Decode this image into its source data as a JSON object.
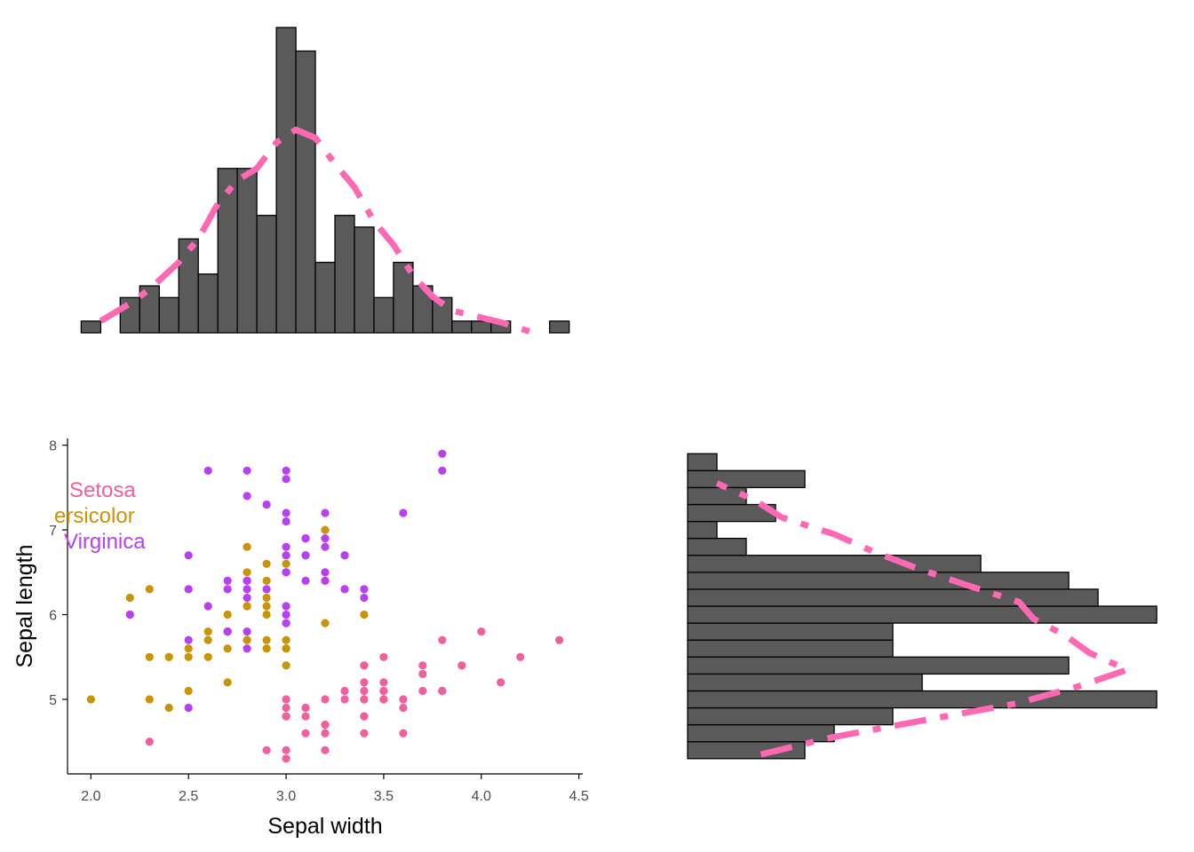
{
  "colors": {
    "setosa": "#F0609E",
    "versicolor": "#C9940A",
    "virginica": "#B940F2",
    "bar_fill": "#5A5A5A",
    "bar_stroke": "#000000",
    "density_line": "#FF69B4",
    "axis": "#000000",
    "tick_text": "#4d4d4d"
  },
  "chart_data": [
    {
      "type": "scatter",
      "panel": "main",
      "title": "",
      "xlabel": "Sepal width",
      "ylabel": "Sepal length",
      "xlim": [
        1.88,
        4.52
      ],
      "ylim": [
        4.12,
        8.08
      ],
      "xticks": [
        2.0,
        2.5,
        3.0,
        3.5,
        4.0,
        4.5
      ],
      "xtick_labels": [
        "2.0",
        "2.5",
        "3.0",
        "3.5",
        "4.0",
        "4.5"
      ],
      "yticks": [
        5,
        6,
        7,
        8
      ],
      "ytick_labels": [
        "5",
        "6",
        "7",
        "8"
      ],
      "legend": {
        "placement": "top-left",
        "entries": [
          "Setosa",
          "ersicolor",
          "Virginica"
        ]
      },
      "series": [
        {
          "name": "Setosa",
          "points": [
            [
              3.5,
              5.1
            ],
            [
              3.0,
              4.9
            ],
            [
              3.2,
              4.7
            ],
            [
              3.1,
              4.6
            ],
            [
              3.6,
              5.0
            ],
            [
              3.9,
              5.4
            ],
            [
              3.4,
              4.6
            ],
            [
              3.4,
              5.0
            ],
            [
              2.9,
              4.4
            ],
            [
              3.1,
              4.9
            ],
            [
              3.7,
              5.4
            ],
            [
              3.4,
              4.8
            ],
            [
              3.0,
              4.8
            ],
            [
              3.0,
              4.3
            ],
            [
              4.0,
              5.8
            ],
            [
              4.4,
              5.7
            ],
            [
              3.9,
              5.4
            ],
            [
              3.5,
              5.1
            ],
            [
              3.8,
              5.7
            ],
            [
              3.8,
              5.1
            ],
            [
              3.4,
              5.4
            ],
            [
              3.7,
              5.1
            ],
            [
              3.6,
              4.6
            ],
            [
              3.3,
              5.1
            ],
            [
              3.4,
              4.8
            ],
            [
              3.0,
              5.0
            ],
            [
              3.4,
              5.0
            ],
            [
              3.5,
              5.2
            ],
            [
              3.4,
              5.2
            ],
            [
              3.2,
              4.7
            ],
            [
              3.1,
              4.8
            ],
            [
              3.4,
              5.4
            ],
            [
              4.1,
              5.2
            ],
            [
              4.2,
              5.5
            ],
            [
              3.1,
              4.9
            ],
            [
              3.2,
              5.0
            ],
            [
              3.5,
              5.5
            ],
            [
              3.6,
              4.9
            ],
            [
              3.0,
              4.4
            ],
            [
              3.4,
              5.1
            ],
            [
              3.5,
              5.0
            ],
            [
              2.3,
              4.5
            ],
            [
              3.2,
              4.4
            ],
            [
              3.5,
              5.0
            ],
            [
              3.8,
              5.1
            ],
            [
              3.0,
              4.8
            ],
            [
              3.8,
              5.1
            ],
            [
              3.2,
              4.6
            ],
            [
              3.7,
              5.3
            ],
            [
              3.3,
              5.0
            ]
          ]
        },
        {
          "name": "ersicolor",
          "points": [
            [
              3.2,
              7.0
            ],
            [
              3.2,
              6.4
            ],
            [
              3.1,
              6.9
            ],
            [
              2.3,
              5.5
            ],
            [
              2.8,
              6.5
            ],
            [
              2.8,
              5.7
            ],
            [
              3.3,
              6.3
            ],
            [
              2.4,
              4.9
            ],
            [
              2.9,
              6.6
            ],
            [
              2.7,
              5.2
            ],
            [
              2.0,
              5.0
            ],
            [
              3.0,
              5.9
            ],
            [
              2.2,
              6.0
            ],
            [
              2.9,
              6.1
            ],
            [
              2.9,
              5.6
            ],
            [
              3.1,
              6.7
            ],
            [
              3.0,
              5.6
            ],
            [
              2.7,
              5.8
            ],
            [
              2.2,
              6.2
            ],
            [
              2.5,
              5.6
            ],
            [
              3.2,
              5.9
            ],
            [
              2.8,
              6.1
            ],
            [
              2.5,
              6.3
            ],
            [
              2.8,
              6.1
            ],
            [
              2.9,
              6.4
            ],
            [
              3.0,
              6.6
            ],
            [
              2.8,
              6.8
            ],
            [
              3.0,
              6.7
            ],
            [
              2.9,
              6.0
            ],
            [
              2.6,
              5.7
            ],
            [
              2.4,
              5.5
            ],
            [
              2.4,
              5.5
            ],
            [
              2.7,
              5.8
            ],
            [
              2.7,
              6.0
            ],
            [
              3.0,
              5.4
            ],
            [
              3.4,
              6.0
            ],
            [
              3.1,
              6.7
            ],
            [
              2.3,
              6.3
            ],
            [
              3.0,
              5.6
            ],
            [
              2.5,
              5.5
            ],
            [
              2.6,
              5.5
            ],
            [
              3.0,
              6.1
            ],
            [
              2.6,
              5.8
            ],
            [
              2.3,
              5.0
            ],
            [
              2.7,
              5.6
            ],
            [
              3.0,
              5.7
            ],
            [
              2.9,
              5.7
            ],
            [
              2.9,
              6.2
            ],
            [
              2.5,
              5.1
            ],
            [
              2.8,
              5.7
            ]
          ]
        },
        {
          "name": "Virginica",
          "points": [
            [
              3.3,
              6.3
            ],
            [
              2.7,
              5.8
            ],
            [
              3.0,
              7.1
            ],
            [
              2.9,
              6.3
            ],
            [
              3.0,
              6.5
            ],
            [
              3.0,
              7.6
            ],
            [
              2.5,
              4.9
            ],
            [
              2.9,
              7.3
            ],
            [
              2.5,
              6.7
            ],
            [
              3.6,
              7.2
            ],
            [
              3.2,
              6.5
            ],
            [
              2.7,
              6.4
            ],
            [
              3.0,
              6.8
            ],
            [
              2.5,
              5.7
            ],
            [
              2.8,
              5.8
            ],
            [
              3.2,
              6.4
            ],
            [
              3.0,
              6.5
            ],
            [
              3.8,
              7.7
            ],
            [
              2.6,
              7.7
            ],
            [
              2.2,
              6.0
            ],
            [
              3.2,
              6.9
            ],
            [
              2.8,
              5.6
            ],
            [
              2.8,
              7.7
            ],
            [
              2.7,
              6.3
            ],
            [
              3.3,
              6.7
            ],
            [
              3.2,
              7.2
            ],
            [
              2.8,
              6.2
            ],
            [
              3.0,
              6.1
            ],
            [
              2.8,
              6.4
            ],
            [
              3.0,
              7.2
            ],
            [
              2.8,
              7.4
            ],
            [
              3.8,
              7.9
            ],
            [
              2.8,
              6.4
            ],
            [
              2.8,
              6.3
            ],
            [
              2.6,
              6.1
            ],
            [
              3.0,
              7.7
            ],
            [
              3.4,
              6.3
            ],
            [
              3.1,
              6.4
            ],
            [
              3.0,
              6.0
            ],
            [
              3.1,
              6.9
            ],
            [
              3.1,
              6.7
            ],
            [
              3.1,
              6.9
            ],
            [
              2.7,
              5.8
            ],
            [
              3.2,
              6.8
            ],
            [
              3.3,
              6.7
            ],
            [
              3.0,
              6.7
            ],
            [
              2.5,
              6.3
            ],
            [
              3.0,
              6.5
            ],
            [
              3.4,
              6.2
            ],
            [
              3.0,
              5.9
            ]
          ]
        }
      ]
    },
    {
      "type": "bar",
      "panel": "top-marginal",
      "variable": "Sepal width",
      "bin_width": 0.1,
      "bin_centers": [
        2.0,
        2.1,
        2.2,
        2.3,
        2.4,
        2.5,
        2.6,
        2.7,
        2.8,
        2.9,
        3.0,
        3.1,
        3.2,
        3.3,
        3.4,
        3.5,
        3.6,
        3.7,
        3.8,
        3.9,
        4.0,
        4.1,
        4.2,
        4.3,
        4.4
      ],
      "counts": [
        1,
        0,
        3,
        4,
        3,
        8,
        5,
        14,
        14,
        10,
        26,
        24,
        6,
        10,
        9,
        3,
        6,
        4,
        3,
        1,
        1,
        1,
        0,
        0,
        1
      ],
      "density_line": [
        [
          2.05,
          1.0
        ],
        [
          2.2,
          2.5
        ],
        [
          2.3,
          3.7
        ],
        [
          2.45,
          6.0
        ],
        [
          2.55,
          8.0
        ],
        [
          2.65,
          11.0
        ],
        [
          2.75,
          13.0
        ],
        [
          2.85,
          14.0
        ],
        [
          2.95,
          16.2
        ],
        [
          3.05,
          17.3
        ],
        [
          3.15,
          16.6
        ],
        [
          3.25,
          14.4
        ],
        [
          3.35,
          12.4
        ],
        [
          3.45,
          9.5
        ],
        [
          3.55,
          7.5
        ],
        [
          3.65,
          4.9
        ],
        [
          3.75,
          3.1
        ],
        [
          3.85,
          1.9
        ],
        [
          3.95,
          1.5
        ],
        [
          4.1,
          0.9
        ],
        [
          4.25,
          0.1
        ]
      ]
    },
    {
      "type": "bar",
      "panel": "right-marginal",
      "orientation": "horizontal",
      "variable": "Sepal length",
      "bin_width": 0.2,
      "bin_centers": [
        4.4,
        4.6,
        4.8,
        5.0,
        5.2,
        5.4,
        5.6,
        5.8,
        6.0,
        6.2,
        6.4,
        6.6,
        6.8,
        7.0,
        7.2,
        7.4,
        7.6,
        7.8
      ],
      "counts": [
        4,
        5,
        7,
        16,
        8,
        13,
        7,
        7,
        16,
        14,
        13,
        10,
        2,
        1,
        3,
        2,
        4,
        1
      ],
      "density_line": [
        [
          4.35,
          2.5
        ],
        [
          4.55,
          4.9
        ],
        [
          4.75,
          8.0
        ],
        [
          4.95,
          11.2
        ],
        [
          5.15,
          13.3
        ],
        [
          5.35,
          15.0
        ],
        [
          5.55,
          13.7
        ],
        [
          5.75,
          12.9
        ],
        [
          5.95,
          11.8
        ],
        [
          6.15,
          11.3
        ],
        [
          6.35,
          9.5
        ],
        [
          6.55,
          7.8
        ],
        [
          6.75,
          6.3
        ],
        [
          6.95,
          5.0
        ],
        [
          7.15,
          3.2
        ],
        [
          7.35,
          2.3
        ],
        [
          7.55,
          1.0
        ]
      ]
    }
  ]
}
